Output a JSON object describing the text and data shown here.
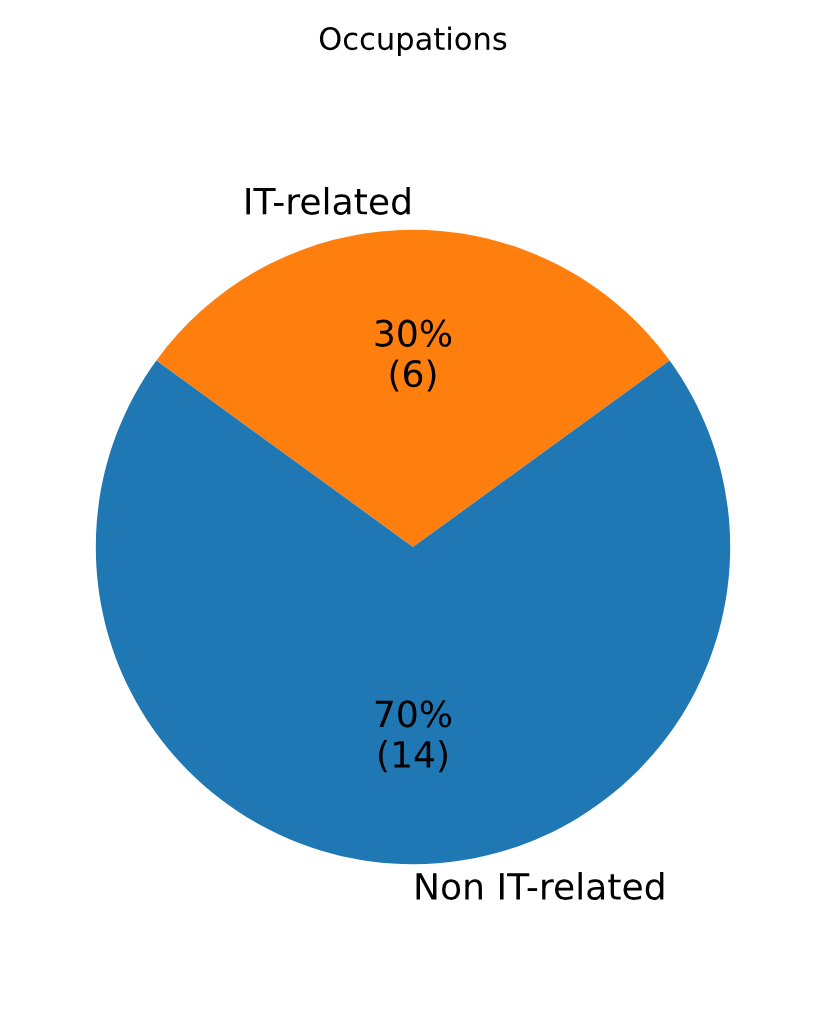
{
  "chart_data": {
    "type": "pie",
    "title": "Occupations",
    "categories": [
      "IT-related",
      "Non IT-related"
    ],
    "values": [
      6,
      14
    ],
    "colors": [
      "#ff7f0e",
      "#1f77b4"
    ],
    "value_labels": [
      "30%\n(6)",
      "70%\n(14)"
    ]
  }
}
